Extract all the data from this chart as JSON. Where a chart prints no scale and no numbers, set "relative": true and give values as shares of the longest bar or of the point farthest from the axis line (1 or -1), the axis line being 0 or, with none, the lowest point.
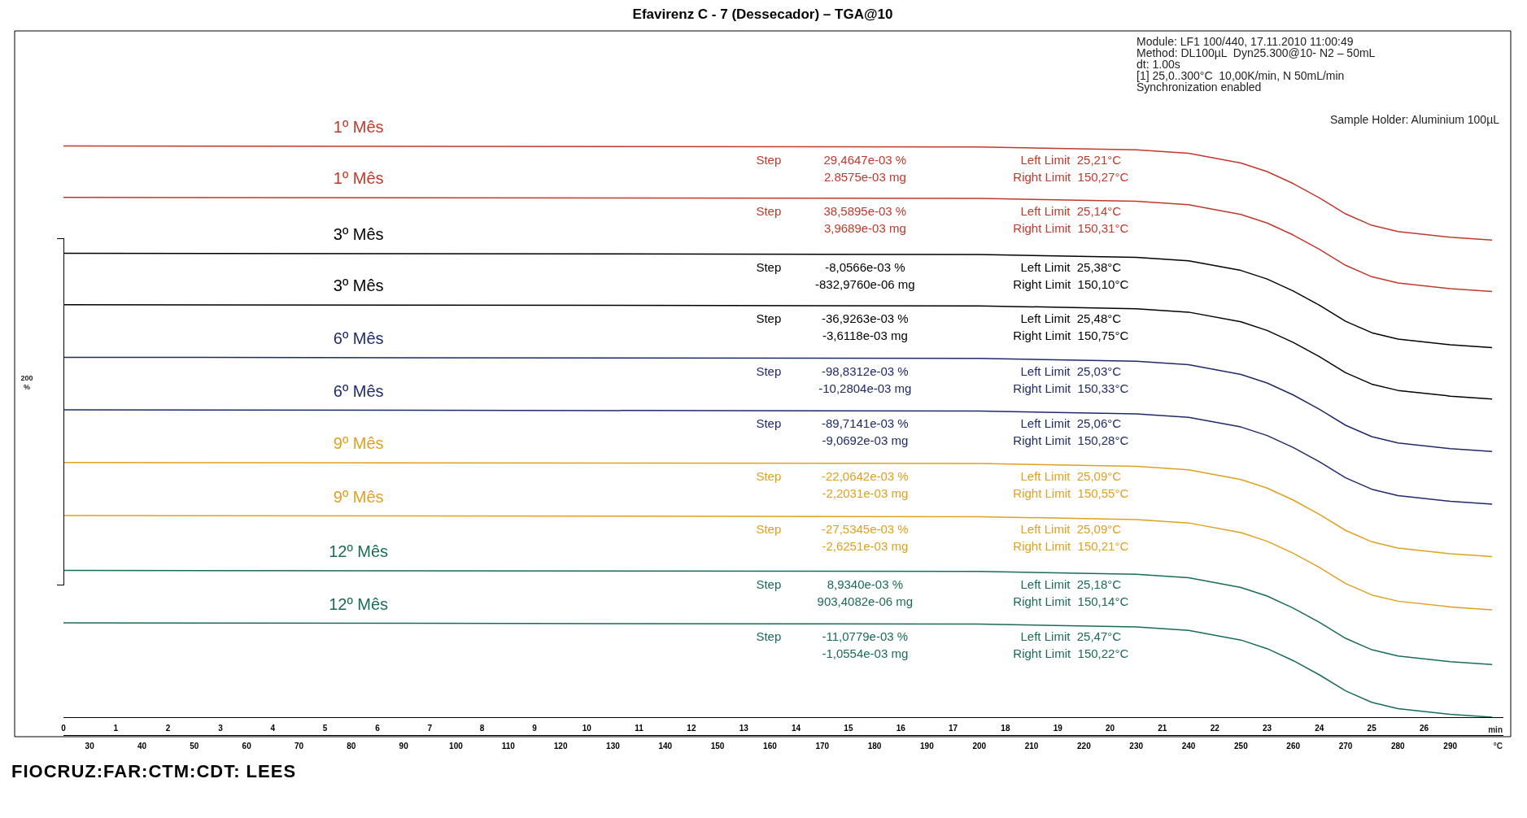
{
  "chart_data": {
    "type": "line",
    "title": "Efavirenz C - 7 (Dessecador) – TGA@10",
    "relative": true,
    "xlabel": "min",
    "x2label": "°C",
    "x": [
      0,
      17.5,
      20.5,
      21.5,
      22.5,
      23,
      23.5,
      24,
      24.5,
      25,
      25.5,
      26.5,
      27.3
    ],
    "xlim": [
      0,
      27.5
    ],
    "xticks": [
      0,
      1,
      2,
      3,
      4,
      5,
      6,
      7,
      8,
      9,
      10,
      11,
      12,
      13,
      14,
      15,
      16,
      17,
      18,
      19,
      20,
      21,
      22,
      23,
      24,
      25,
      26
    ],
    "x2lim": [
      25,
      300
    ],
    "x2ticks": [
      30,
      40,
      50,
      60,
      70,
      80,
      90,
      100,
      110,
      120,
      130,
      140,
      150,
      160,
      170,
      180,
      190,
      200,
      210,
      220,
      230,
      240,
      250,
      260,
      270,
      280,
      290
    ],
    "grid": false,
    "legend": false,
    "marker": "none",
    "line_style": "solid",
    "series": [
      {
        "name": "1º Mês",
        "color": "#c0392b",
        "values": [
          1,
          0.998,
          0.993,
          0.987,
          0.97,
          0.955,
          0.934,
          0.909,
          0.881,
          0.861,
          0.85,
          0.84,
          0.835
        ]
      },
      {
        "name": "1º Mês",
        "color": "#c0392b",
        "values": [
          0.91,
          0.908,
          0.903,
          0.897,
          0.88,
          0.865,
          0.844,
          0.819,
          0.791,
          0.771,
          0.76,
          0.75,
          0.745
        ]
      },
      {
        "name": "3º Mês",
        "color": "#000000",
        "values": [
          0.812,
          0.81,
          0.805,
          0.799,
          0.782,
          0.767,
          0.746,
          0.721,
          0.693,
          0.673,
          0.662,
          0.652,
          0.647
        ]
      },
      {
        "name": "3º Mês",
        "color": "#000000",
        "values": [
          0.722,
          0.72,
          0.715,
          0.709,
          0.692,
          0.677,
          0.656,
          0.631,
          0.603,
          0.583,
          0.572,
          0.562,
          0.557
        ]
      },
      {
        "name": "6º Mês",
        "color": "#1f2a6b",
        "values": [
          0.63,
          0.628,
          0.623,
          0.617,
          0.6,
          0.585,
          0.564,
          0.539,
          0.511,
          0.491,
          0.48,
          0.47,
          0.465
        ]
      },
      {
        "name": "6º Mês",
        "color": "#1f2a6b",
        "values": [
          0.538,
          0.536,
          0.531,
          0.525,
          0.508,
          0.493,
          0.472,
          0.447,
          0.419,
          0.399,
          0.388,
          0.378,
          0.373
        ]
      },
      {
        "name": "9º Mês",
        "color": "#e0a020",
        "values": [
          0.446,
          0.444,
          0.439,
          0.433,
          0.416,
          0.401,
          0.38,
          0.355,
          0.327,
          0.307,
          0.296,
          0.286,
          0.281
        ]
      },
      {
        "name": "9º Mês",
        "color": "#e0a020",
        "values": [
          0.353,
          0.351,
          0.346,
          0.34,
          0.323,
          0.308,
          0.287,
          0.262,
          0.234,
          0.214,
          0.203,
          0.193,
          0.188
        ]
      },
      {
        "name": "12º Mês",
        "color": "#1a6b5a",
        "values": [
          0.257,
          0.255,
          0.25,
          0.244,
          0.227,
          0.212,
          0.191,
          0.166,
          0.138,
          0.118,
          0.107,
          0.097,
          0.092
        ]
      },
      {
        "name": "12º Mês",
        "color": "#1a6b5a",
        "values": [
          0.165,
          0.163,
          0.158,
          0.152,
          0.135,
          0.12,
          0.099,
          0.074,
          0.046,
          0.026,
          0.015,
          0.005,
          0
        ]
      }
    ],
    "annotations": [
      "Module: LF1 100/440, 17.11.2010 11:00:49",
      "Method: DL100µL  Dyn25.300@10- N2 – 50mL",
      "dt: 1.00s",
      "[1] 25,0..300°C  10,00K/min, N 50mL/min",
      "Synchronization enabled",
      "Sample Holder: Aluminium 100µL",
      "200 %",
      "FIOCRUZ:FAR:CTM:CDT: LEES",
      "Step",
      "29,4647e-03 %",
      "2.8575e-03 mg",
      "Left Limit  25,21°C",
      "Right Limit  150,27°C",
      "Step",
      "38,5895e-03 %",
      "3,9689e-03 mg",
      "Left Limit  25,14°C",
      "Right Limit  150,31°C",
      "Step",
      "-8,0566e-03 %",
      "-832,9760e-06 mg",
      "Left Limit  25,38°C",
      "Right Limit  150,10°C",
      "Step",
      "-36,9263e-03 %",
      "-3,6118e-03 mg",
      "Left Limit  25,48°C",
      "Right Limit  150,75°C",
      "Step",
      "-98,8312e-03 %",
      "-10,2804e-03 mg",
      "Left Limit  25,03°C",
      "Right Limit  150,33°C",
      "Step",
      "-89,7141e-03 %",
      "-9,0692e-03 mg",
      "Left Limit  25,06°C",
      "Right Limit  150,28°C",
      "Step",
      "-22,0642e-03 %",
      "-2,2031e-03 mg",
      "Left Limit  25,09°C",
      "Right Limit  150,55°C",
      "Step",
      "-27,5345e-03 %",
      "-2,6251e-03 mg",
      "Left Limit  25,09°C",
      "Right Limit  150,21°C",
      "Step",
      "8,9340e-03 %",
      "903,4082e-06 mg",
      "Left Limit  25,18°C",
      "Right Limit  150,14°C",
      "Step",
      "-11,0779e-03 %",
      "-1,0554e-03 mg",
      "Left Limit  25,47°C",
      "Right Limit  150,22°C"
    ]
  }
}
